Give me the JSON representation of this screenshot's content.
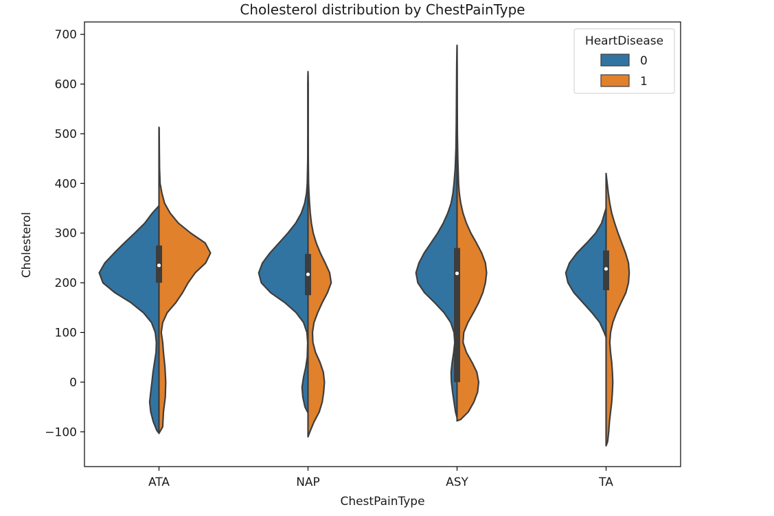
{
  "chart_data": {
    "type": "violin",
    "title": "Cholesterol distribution by ChestPainType",
    "xlabel": "ChestPainType",
    "ylabel": "Cholesterol",
    "ylim": [
      -170,
      725
    ],
    "yticks": [
      -100,
      0,
      100,
      200,
      300,
      400,
      500,
      600,
      700
    ],
    "ytick_labels": [
      "−100",
      "0",
      "100",
      "200",
      "300",
      "400",
      "500",
      "600",
      "700"
    ],
    "categories": [
      "ATA",
      "NAP",
      "ASY",
      "TA"
    ],
    "grid": false,
    "split": true,
    "legend": {
      "title": "HeartDisease",
      "placement": "top-right",
      "entries": [
        {
          "label": "0",
          "color": "#3274a1"
        },
        {
          "label": "1",
          "color": "#e1812c"
        }
      ]
    },
    "colors": {
      "0": "#3274a1",
      "1": "#e1812c",
      "outline": "#3d3d3d",
      "box": "#3d3d3d",
      "median": "#ffffff"
    },
    "violins": [
      {
        "category": "ATA",
        "left": [
          [
            -103,
            0
          ],
          [
            -97,
            0.06
          ],
          [
            -80,
            0.15
          ],
          [
            -60,
            0.22
          ],
          [
            -40,
            0.25
          ],
          [
            -20,
            0.22
          ],
          [
            0,
            0.19
          ],
          [
            20,
            0.16
          ],
          [
            40,
            0.12
          ],
          [
            60,
            0.08
          ],
          [
            80,
            0.07
          ],
          [
            100,
            0.1
          ],
          [
            120,
            0.2
          ],
          [
            140,
            0.42
          ],
          [
            160,
            0.75
          ],
          [
            180,
            1.18
          ],
          [
            200,
            1.5
          ],
          [
            220,
            1.6
          ],
          [
            240,
            1.45
          ],
          [
            260,
            1.2
          ],
          [
            280,
            0.93
          ],
          [
            300,
            0.65
          ],
          [
            320,
            0.38
          ],
          [
            340,
            0.18
          ],
          [
            355,
            0
          ]
        ],
        "right": [
          [
            -103,
            0
          ],
          [
            -90,
            0.1
          ],
          [
            -60,
            0.12
          ],
          [
            -30,
            0.17
          ],
          [
            0,
            0.18
          ],
          [
            30,
            0.16
          ],
          [
            60,
            0.12
          ],
          [
            80,
            0.1
          ],
          [
            100,
            0.06
          ],
          [
            120,
            0.1
          ],
          [
            140,
            0.22
          ],
          [
            160,
            0.45
          ],
          [
            180,
            0.63
          ],
          [
            200,
            0.78
          ],
          [
            220,
            0.97
          ],
          [
            240,
            1.25
          ],
          [
            260,
            1.38
          ],
          [
            280,
            1.24
          ],
          [
            300,
            0.85
          ],
          [
            320,
            0.52
          ],
          [
            340,
            0.3
          ],
          [
            360,
            0.15
          ],
          [
            380,
            0.08
          ],
          [
            400,
            0.03
          ],
          [
            430,
            0.015
          ],
          [
            470,
            0.01
          ],
          [
            510,
            0.005
          ],
          [
            513,
            0
          ]
        ],
        "box": {
          "q1": 200,
          "median": 235,
          "q3": 275
        }
      },
      {
        "category": "NAP",
        "left": [
          [
            -62,
            0
          ],
          [
            -50,
            0.08
          ],
          [
            -30,
            0.14
          ],
          [
            -10,
            0.16
          ],
          [
            10,
            0.12
          ],
          [
            30,
            0.06
          ],
          [
            50,
            0.02
          ],
          [
            80,
            0.01
          ],
          [
            100,
            0.03
          ],
          [
            120,
            0.12
          ],
          [
            140,
            0.32
          ],
          [
            160,
            0.62
          ],
          [
            180,
            1.0
          ],
          [
            200,
            1.25
          ],
          [
            220,
            1.32
          ],
          [
            240,
            1.22
          ],
          [
            260,
            1.02
          ],
          [
            280,
            0.78
          ],
          [
            300,
            0.54
          ],
          [
            320,
            0.33
          ],
          [
            340,
            0.18
          ],
          [
            360,
            0.09
          ],
          [
            380,
            0.04
          ],
          [
            400,
            0.02
          ],
          [
            450,
            0.008
          ],
          [
            500,
            0.006
          ],
          [
            550,
            0.005
          ],
          [
            600,
            0.005
          ],
          [
            625,
            0
          ]
        ],
        "right": [
          [
            -110,
            0
          ],
          [
            -100,
            0.05
          ],
          [
            -80,
            0.16
          ],
          [
            -60,
            0.3
          ],
          [
            -40,
            0.38
          ],
          [
            -20,
            0.42
          ],
          [
            0,
            0.44
          ],
          [
            20,
            0.41
          ],
          [
            40,
            0.32
          ],
          [
            60,
            0.2
          ],
          [
            80,
            0.13
          ],
          [
            100,
            0.12
          ],
          [
            120,
            0.16
          ],
          [
            140,
            0.26
          ],
          [
            160,
            0.38
          ],
          [
            180,
            0.52
          ],
          [
            200,
            0.62
          ],
          [
            220,
            0.58
          ],
          [
            240,
            0.46
          ],
          [
            260,
            0.33
          ],
          [
            280,
            0.22
          ],
          [
            300,
            0.14
          ],
          [
            320,
            0.09
          ],
          [
            340,
            0.06
          ],
          [
            360,
            0.04
          ],
          [
            380,
            0.025
          ],
          [
            400,
            0.015
          ],
          [
            450,
            0.008
          ],
          [
            500,
            0.006
          ],
          [
            550,
            0.005
          ],
          [
            600,
            0.005
          ],
          [
            620,
            0
          ]
        ],
        "box": {
          "q1": 175,
          "median": 217,
          "q3": 258
        }
      },
      {
        "category": "ASY",
        "left": [
          [
            -72,
            0
          ],
          [
            -60,
            0.04
          ],
          [
            -40,
            0.08
          ],
          [
            -20,
            0.12
          ],
          [
            0,
            0.15
          ],
          [
            20,
            0.16
          ],
          [
            40,
            0.13
          ],
          [
            60,
            0.09
          ],
          [
            80,
            0.06
          ],
          [
            100,
            0.08
          ],
          [
            120,
            0.17
          ],
          [
            140,
            0.35
          ],
          [
            160,
            0.6
          ],
          [
            180,
            0.87
          ],
          [
            200,
            1.05
          ],
          [
            220,
            1.1
          ],
          [
            240,
            1.02
          ],
          [
            260,
            0.88
          ],
          [
            280,
            0.7
          ],
          [
            300,
            0.52
          ],
          [
            320,
            0.37
          ],
          [
            340,
            0.25
          ],
          [
            360,
            0.16
          ],
          [
            380,
            0.11
          ],
          [
            400,
            0.08
          ],
          [
            430,
            0.05
          ],
          [
            470,
            0.03
          ],
          [
            520,
            0.02
          ],
          [
            580,
            0.015
          ],
          [
            640,
            0.01
          ],
          [
            678,
            0
          ]
        ],
        "right": [
          [
            -78,
            0
          ],
          [
            -75,
            0.1
          ],
          [
            -60,
            0.3
          ],
          [
            -40,
            0.45
          ],
          [
            -20,
            0.55
          ],
          [
            0,
            0.58
          ],
          [
            20,
            0.53
          ],
          [
            40,
            0.4
          ],
          [
            60,
            0.25
          ],
          [
            80,
            0.16
          ],
          [
            100,
            0.18
          ],
          [
            120,
            0.29
          ],
          [
            140,
            0.44
          ],
          [
            160,
            0.58
          ],
          [
            180,
            0.69
          ],
          [
            200,
            0.76
          ],
          [
            220,
            0.79
          ],
          [
            240,
            0.76
          ],
          [
            260,
            0.66
          ],
          [
            280,
            0.52
          ],
          [
            300,
            0.37
          ],
          [
            320,
            0.25
          ],
          [
            340,
            0.16
          ],
          [
            360,
            0.1
          ],
          [
            380,
            0.06
          ],
          [
            400,
            0.04
          ],
          [
            450,
            0.02
          ],
          [
            500,
            0.01
          ],
          [
            560,
            0.006
          ],
          [
            620,
            0.004
          ],
          [
            675,
            0
          ]
        ],
        "box": {
          "q1": 0,
          "median": 219,
          "q3": 270
        }
      },
      {
        "category": "TA",
        "left": [
          [
            90,
            0
          ],
          [
            100,
            0.05
          ],
          [
            120,
            0.17
          ],
          [
            140,
            0.38
          ],
          [
            160,
            0.62
          ],
          [
            180,
            0.86
          ],
          [
            200,
            1.02
          ],
          [
            220,
            1.08
          ],
          [
            240,
            0.98
          ],
          [
            260,
            0.78
          ],
          [
            280,
            0.52
          ],
          [
            300,
            0.28
          ],
          [
            320,
            0.12
          ],
          [
            340,
            0.04
          ],
          [
            350,
            0
          ]
        ],
        "right": [
          [
            -128,
            0
          ],
          [
            -120,
            0.04
          ],
          [
            -100,
            0.07
          ],
          [
            -80,
            0.09
          ],
          [
            -60,
            0.12
          ],
          [
            -40,
            0.15
          ],
          [
            -20,
            0.17
          ],
          [
            0,
            0.18
          ],
          [
            20,
            0.17
          ],
          [
            40,
            0.15
          ],
          [
            60,
            0.12
          ],
          [
            80,
            0.1
          ],
          [
            100,
            0.12
          ],
          [
            120,
            0.18
          ],
          [
            140,
            0.28
          ],
          [
            160,
            0.4
          ],
          [
            180,
            0.53
          ],
          [
            200,
            0.6
          ],
          [
            220,
            0.62
          ],
          [
            240,
            0.6
          ],
          [
            260,
            0.52
          ],
          [
            280,
            0.42
          ],
          [
            300,
            0.32
          ],
          [
            320,
            0.23
          ],
          [
            340,
            0.15
          ],
          [
            360,
            0.1
          ],
          [
            380,
            0.06
          ],
          [
            400,
            0.03
          ],
          [
            420,
            0
          ]
        ],
        "box": {
          "q1": 185,
          "median": 228,
          "q3": 265
        }
      }
    ]
  }
}
